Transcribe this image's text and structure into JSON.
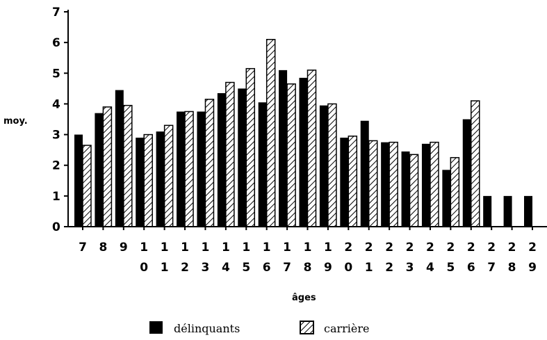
{
  "chart_data": {
    "type": "bar",
    "categories": [
      "7",
      "8",
      "9",
      "10",
      "11",
      "12",
      "13",
      "14",
      "15",
      "16",
      "17",
      "18",
      "19",
      "20",
      "21",
      "22",
      "23",
      "24",
      "25",
      "26",
      "27",
      "28",
      "29"
    ],
    "category_ticks": [
      [
        "7"
      ],
      [
        "8"
      ],
      [
        "9"
      ],
      [
        "1",
        "0"
      ],
      [
        "1",
        "1"
      ],
      [
        "1",
        "2"
      ],
      [
        "1",
        "3"
      ],
      [
        "1",
        "4"
      ],
      [
        "1",
        "5"
      ],
      [
        "1",
        "6"
      ],
      [
        "1",
        "7"
      ],
      [
        "1",
        "8"
      ],
      [
        "1",
        "9"
      ],
      [
        "2",
        "0"
      ],
      [
        "2",
        "1"
      ],
      [
        "2",
        "2"
      ],
      [
        "2",
        "3"
      ],
      [
        "2",
        "4"
      ],
      [
        "2",
        "5"
      ],
      [
        "2",
        "6"
      ],
      [
        "2",
        "7"
      ],
      [
        "2",
        "8"
      ],
      [
        "2",
        "9"
      ]
    ],
    "series": [
      {
        "name": "délinquants",
        "fill": "solid",
        "values": [
          3.0,
          3.7,
          4.45,
          2.9,
          3.1,
          3.75,
          3.75,
          4.35,
          4.5,
          4.05,
          5.1,
          4.85,
          3.95,
          2.9,
          3.45,
          2.75,
          2.45,
          2.7,
          1.85,
          3.5,
          1.0,
          1.0,
          1.0
        ]
      },
      {
        "name": "carrière",
        "fill": "hatched",
        "values": [
          2.65,
          3.9,
          3.95,
          3.0,
          3.3,
          3.75,
          4.15,
          4.7,
          5.15,
          6.1,
          4.65,
          5.1,
          4.0,
          2.95,
          2.8,
          2.75,
          2.35,
          2.75,
          2.25,
          4.1,
          null,
          null,
          null
        ]
      }
    ],
    "xlabel": "âges",
    "ylabel": "moy.",
    "ylim": [
      0,
      7
    ],
    "yticks": [
      0,
      1,
      2,
      3,
      4,
      5,
      6,
      7
    ],
    "grid": false,
    "legend": "bottom",
    "colors": {
      "solid": "#000000",
      "hatched_stroke": "#000000",
      "background": "#ffffff"
    }
  }
}
